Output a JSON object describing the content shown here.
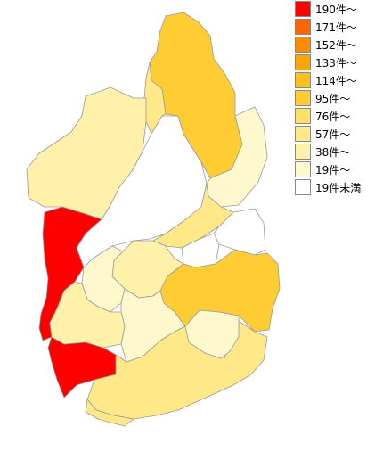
{
  "legend": {
    "items": [
      {
        "label": "190件～",
        "color": "#ff0000"
      },
      {
        "label": "171件～",
        "color": "#ff6600"
      },
      {
        "label": "152件～",
        "color": "#ff8c00"
      },
      {
        "label": "133件～",
        "color": "#ffa500"
      },
      {
        "label": "114件～",
        "color": "#ffbf1f"
      },
      {
        "label": "95件～",
        "color": "#ffcc33"
      },
      {
        "label": "76件～",
        "color": "#ffe066"
      },
      {
        "label": "57件～",
        "color": "#ffe888"
      },
      {
        "label": "38件～",
        "color": "#fff0aa"
      },
      {
        "label": "19件～",
        "color": "#fff8cc"
      },
      {
        "label": "19件未満",
        "color": "#ffffff"
      }
    ]
  },
  "regions": [
    {
      "id": "north-east",
      "tier": 5
    },
    {
      "id": "north-central",
      "tier": 7
    },
    {
      "id": "north-west",
      "tier": 8
    },
    {
      "id": "lake-east-north",
      "tier": 9
    },
    {
      "id": "lake-east-south",
      "tier": 7
    },
    {
      "id": "east-small-1",
      "tier": 10
    },
    {
      "id": "east-small-2",
      "tier": 10
    },
    {
      "id": "west-shore",
      "tier": 0
    },
    {
      "id": "south-west",
      "tier": 0
    },
    {
      "id": "south-east-large",
      "tier": 5
    },
    {
      "id": "center-south",
      "tier": 7
    },
    {
      "id": "central-mid",
      "tier": 8
    },
    {
      "id": "central-small-a",
      "tier": 9
    },
    {
      "id": "central-small-b",
      "tier": 9
    },
    {
      "id": "central-small-c",
      "tier": 8
    },
    {
      "id": "south-inner",
      "tier": 9
    },
    {
      "id": "south-big",
      "tier": 7
    },
    {
      "id": "lake",
      "tier": 10
    }
  ]
}
